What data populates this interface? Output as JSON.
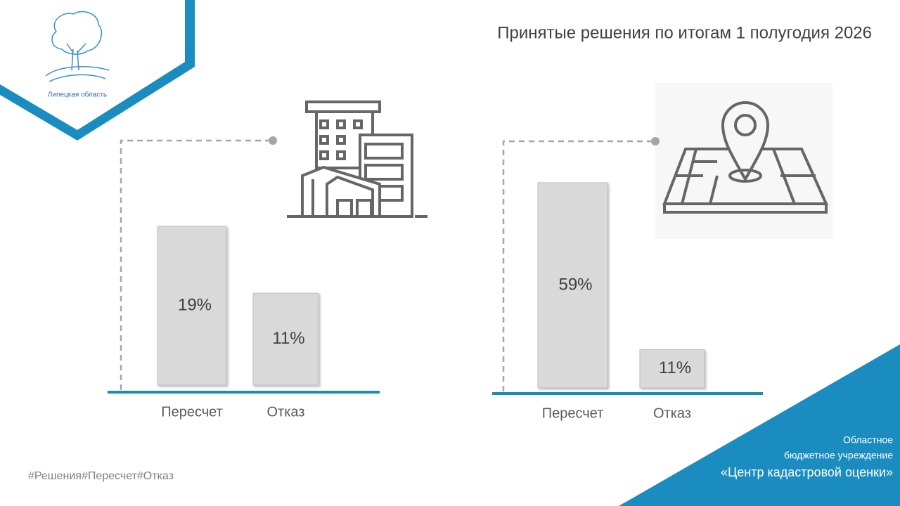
{
  "title": "Принятые решения по итогам 1 полугодия 2026",
  "logo": {
    "label": "Липецкая область"
  },
  "hashtags": "#Решения#Пересчет#Отказ",
  "organization": [
    "Областное",
    "бюджетное учреждение",
    "«Центр кадастровой оценки»"
  ],
  "chart_data": [
    {
      "type": "bar",
      "categories": [
        "Пересчет",
        "Отказ"
      ],
      "values": [
        19,
        11
      ],
      "value_labels": [
        "19%",
        "11%"
      ],
      "color": "#d9d9d9"
    },
    {
      "type": "bar",
      "categories": [
        "Пересчет",
        "Отказ"
      ],
      "values": [
        59,
        11
      ],
      "value_labels": [
        "59%",
        "11%"
      ],
      "color": "#d9d9d9"
    }
  ]
}
